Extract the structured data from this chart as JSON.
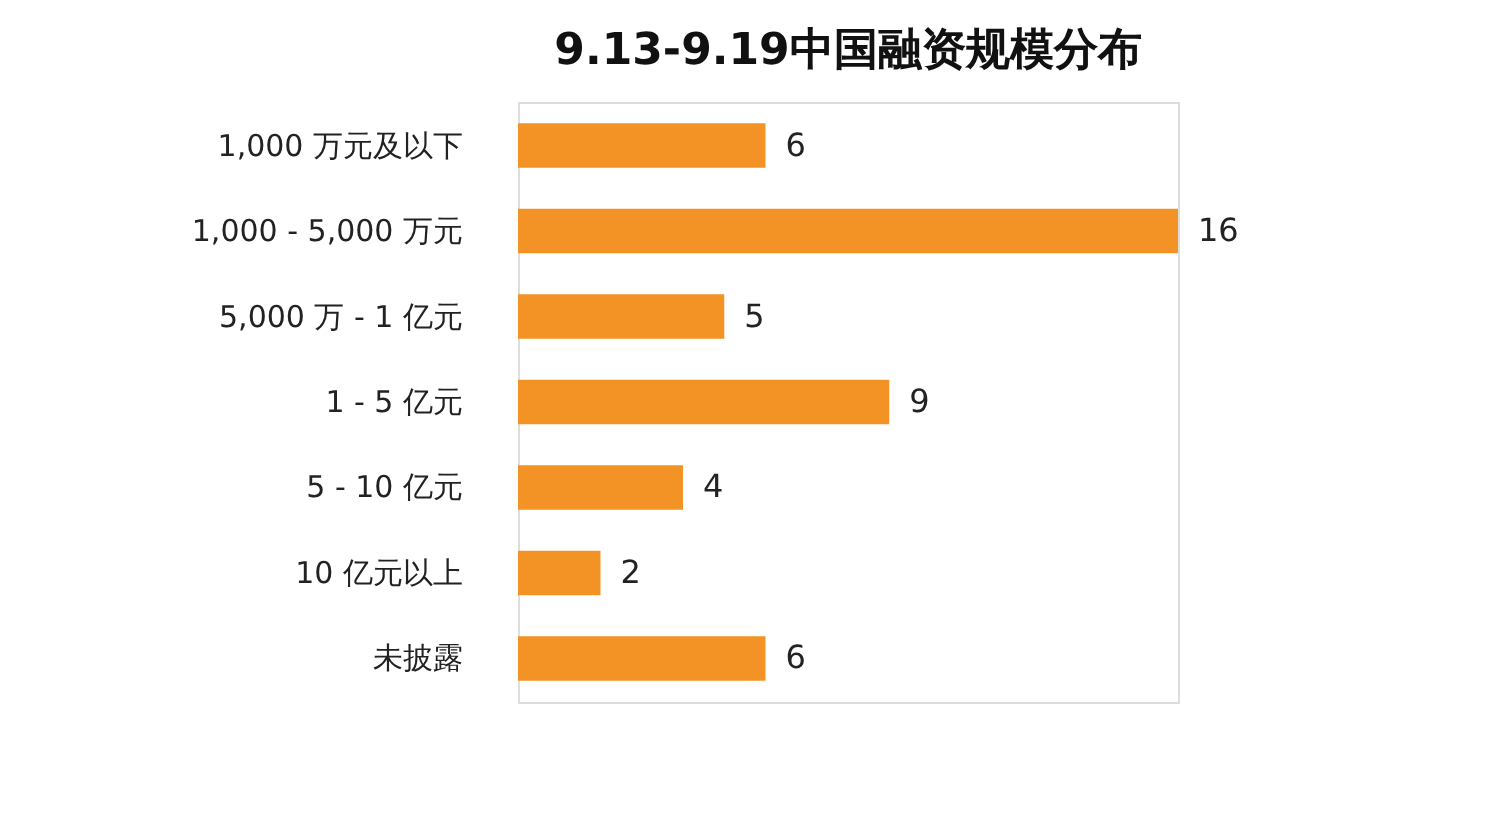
{
  "chart_data": {
    "type": "bar",
    "orientation": "horizontal",
    "title": "9.13-9.19中国融资规模分布",
    "categories": [
      "1,000 万元及以下",
      "1,000 - 5,000 万元",
      "5,000 万 - 1 亿元",
      "1 - 5 亿元",
      "5 - 10 亿元",
      "10 亿元以上",
      "未披露"
    ],
    "values": [
      6,
      16,
      5,
      9,
      4,
      2,
      6
    ],
    "color": "#f39325",
    "data_labels": true
  }
}
